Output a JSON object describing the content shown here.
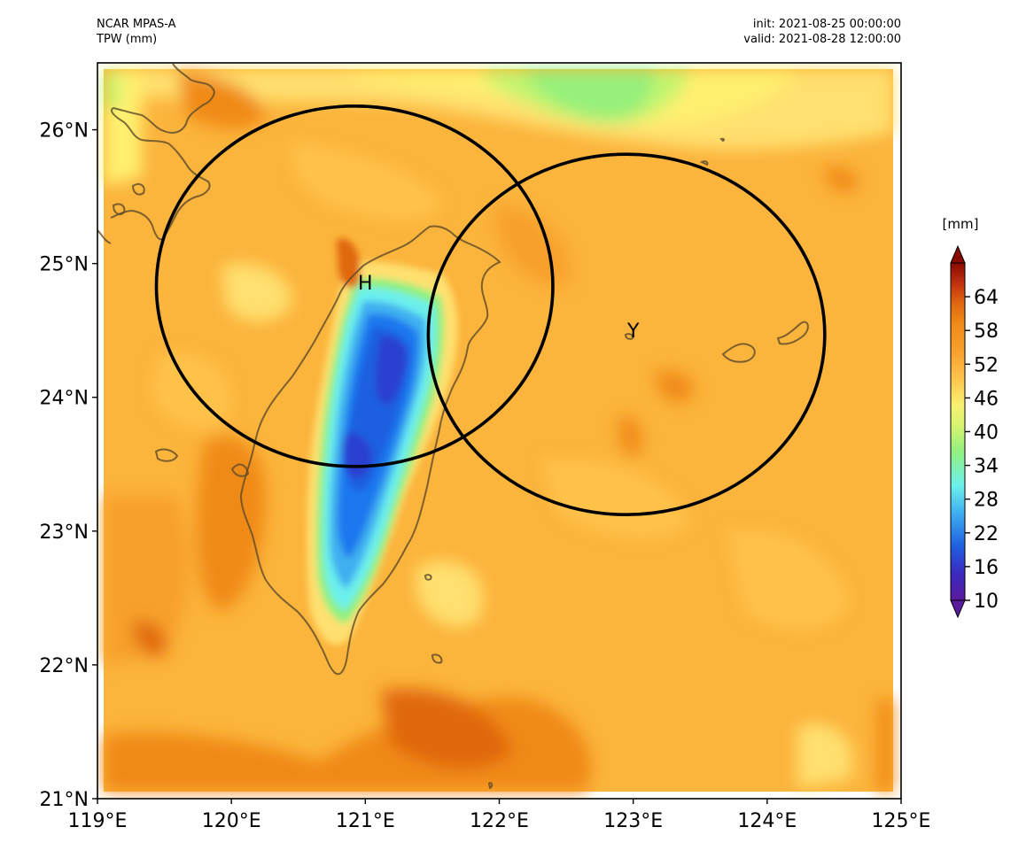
{
  "header": {
    "model": "NCAR MPAS-A",
    "field": "TPW (mm)",
    "init": "init: 2021-08-25 00:00:00",
    "valid": "valid: 2021-08-28 12:00:00"
  },
  "map": {
    "lon_range": [
      119,
      125
    ],
    "lat_range": [
      21,
      26.5
    ],
    "lon_ticks": [
      {
        "value": 119,
        "label": "119°E"
      },
      {
        "value": 120,
        "label": "120°E"
      },
      {
        "value": 121,
        "label": "121°E"
      },
      {
        "value": 122,
        "label": "122°E"
      },
      {
        "value": 123,
        "label": "123°E"
      },
      {
        "value": 124,
        "label": "124°E"
      },
      {
        "value": 125,
        "label": "125°E"
      }
    ],
    "lat_ticks": [
      {
        "value": 21,
        "label": "21°N"
      },
      {
        "value": 22,
        "label": "22°N"
      },
      {
        "value": 23,
        "label": "23°N"
      },
      {
        "value": 24,
        "label": "24°N"
      },
      {
        "value": 25,
        "label": "25°N"
      },
      {
        "value": 26,
        "label": "26°N"
      }
    ],
    "circles": [
      {
        "name": "circle-h",
        "center_lon": 120.92,
        "center_lat": 24.83,
        "radius_deg": 1.48
      },
      {
        "name": "circle-y",
        "center_lon": 122.95,
        "center_lat": 24.47,
        "radius_deg": 1.48
      }
    ],
    "markers": [
      {
        "name": "marker-h",
        "label": "H",
        "lon": 121.0,
        "lat": 24.86
      },
      {
        "name": "marker-y",
        "label": "Y",
        "lon": 123.0,
        "lat": 24.5
      }
    ]
  },
  "colorbar": {
    "unit": "[mm]",
    "min": 10,
    "max": 70,
    "ticks": [
      10,
      16,
      22,
      28,
      34,
      40,
      46,
      52,
      58,
      64
    ],
    "colors": {
      "purple": "#5a1a9e",
      "blue": "#1f5fe0",
      "sky": "#3fb0f0",
      "cyan": "#6cf0ec",
      "green": "#90f080",
      "yellow": "#f8f070",
      "light_orange": "#ffc24a",
      "orange": "#f7a02c",
      "dark_orange": "#e06810",
      "red": "#c03010",
      "dark_red": "#8a0a00"
    }
  }
}
